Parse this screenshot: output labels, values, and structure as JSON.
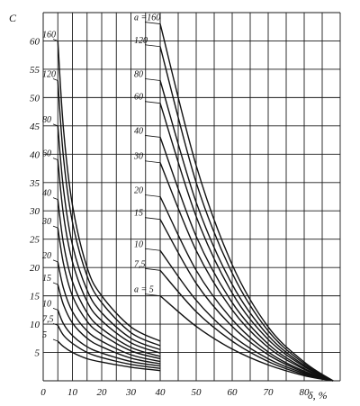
{
  "chart_data": {
    "type": "line",
    "ylabel": "C",
    "xlabel": "δ, %",
    "ylim": [
      0,
      65
    ],
    "grid": true,
    "y_ticks": [
      5,
      10,
      15,
      20,
      25,
      30,
      35,
      40,
      45,
      50,
      55,
      60
    ],
    "x_ticks_left": [
      0,
      10,
      20,
      30,
      40
    ],
    "x_ticks_right": [
      40,
      50,
      60,
      70,
      80
    ],
    "left_panel": {
      "xlim": [
        0,
        40
      ],
      "series": [
        {
          "name": "160",
          "x": [
            5,
            7,
            10,
            15,
            20,
            30,
            40
          ],
          "y": [
            60,
            44,
            31,
            20,
            15,
            9.5,
            7
          ]
        },
        {
          "name": "120",
          "x": [
            5,
            7,
            10,
            15,
            20,
            30,
            40
          ],
          "y": [
            53,
            39,
            28,
            18.5,
            13.8,
            8.5,
            6.2
          ]
        },
        {
          "name": "80",
          "x": [
            5,
            7,
            10,
            15,
            20,
            30,
            40
          ],
          "y": [
            45,
            33.5,
            24,
            16,
            12,
            7.5,
            5.5
          ]
        },
        {
          "name": "60",
          "x": [
            5,
            7,
            10,
            15,
            20,
            30,
            40
          ],
          "y": [
            39,
            29,
            21,
            14,
            10.6,
            6.7,
            4.9
          ]
        },
        {
          "name": "40",
          "x": [
            5,
            7,
            10,
            15,
            20,
            30,
            40
          ],
          "y": [
            32,
            24,
            17.5,
            12,
            9.2,
            5.9,
            4.3
          ]
        },
        {
          "name": "30",
          "x": [
            5,
            7,
            10,
            15,
            20,
            30,
            40
          ],
          "y": [
            27,
            20.5,
            15,
            10.5,
            8.2,
            5.3,
            3.9
          ]
        },
        {
          "name": "20",
          "x": [
            5,
            7,
            10,
            15,
            20,
            30,
            40
          ],
          "y": [
            21,
            16.2,
            12.2,
            8.8,
            7,
            4.6,
            3.4
          ]
        },
        {
          "name": "15",
          "x": [
            5,
            7,
            10,
            15,
            20,
            30,
            40
          ],
          "y": [
            17,
            13.3,
            10.2,
            7.5,
            6,
            4,
            3
          ]
        },
        {
          "name": "10",
          "x": [
            5,
            7,
            10,
            15,
            20,
            30,
            40
          ],
          "y": [
            12.5,
            10,
            8,
            6,
            4.9,
            3.4,
            2.6
          ]
        },
        {
          "name": "7,5",
          "x": [
            5,
            7,
            10,
            15,
            20,
            30,
            40
          ],
          "y": [
            9.8,
            8,
            6.6,
            5,
            4.1,
            2.9,
            2.2
          ]
        },
        {
          "name": "5",
          "x": [
            5,
            7,
            10,
            15,
            20,
            30,
            40
          ],
          "y": [
            7,
            6,
            5,
            3.9,
            3.3,
            2.4,
            1.8
          ]
        }
      ]
    },
    "right_panel": {
      "xlim": [
        40,
        90
      ],
      "series": [
        {
          "name": "a =160",
          "x": [
            40,
            50,
            60,
            70,
            80,
            88
          ],
          "y": [
            63,
            38,
            20.5,
            9.5,
            3.3,
            0
          ]
        },
        {
          "name": "120",
          "x": [
            40,
            50,
            60,
            70,
            80,
            88
          ],
          "y": [
            59,
            35,
            19,
            8.8,
            3,
            0
          ]
        },
        {
          "name": "80",
          "x": [
            40,
            50,
            60,
            70,
            80,
            88
          ],
          "y": [
            53,
            31.5,
            17,
            8,
            2.7,
            0
          ]
        },
        {
          "name": "60",
          "x": [
            40,
            50,
            60,
            70,
            80,
            88
          ],
          "y": [
            49,
            29,
            15.5,
            7.3,
            2.5,
            0
          ]
        },
        {
          "name": "40",
          "x": [
            40,
            50,
            60,
            70,
            80,
            88
          ],
          "y": [
            43,
            25.5,
            13.8,
            6.5,
            2.2,
            0
          ]
        },
        {
          "name": "30",
          "x": [
            40,
            50,
            60,
            70,
            80,
            88
          ],
          "y": [
            38.5,
            23,
            12.5,
            5.9,
            2,
            0
          ]
        },
        {
          "name": "20",
          "x": [
            40,
            50,
            60,
            70,
            80,
            88
          ],
          "y": [
            32.5,
            19.5,
            10.8,
            5.1,
            1.7,
            0
          ]
        },
        {
          "name": "15",
          "x": [
            40,
            50,
            60,
            70,
            80,
            88
          ],
          "y": [
            28.5,
            17.2,
            9.6,
            4.6,
            1.5,
            0
          ]
        },
        {
          "name": "10",
          "x": [
            40,
            50,
            60,
            70,
            80,
            88
          ],
          "y": [
            23,
            14.2,
            8,
            3.9,
            1.3,
            0
          ]
        },
        {
          "name": "7,5",
          "x": [
            40,
            50,
            60,
            70,
            80,
            88
          ],
          "y": [
            19.5,
            12.2,
            7,
            3.4,
            1.1,
            0
          ]
        },
        {
          "name": "a = 5",
          "x": [
            40,
            50,
            60,
            70,
            80,
            88
          ],
          "y": [
            15,
            9.6,
            5.6,
            2.8,
            0.9,
            0
          ]
        }
      ]
    }
  }
}
